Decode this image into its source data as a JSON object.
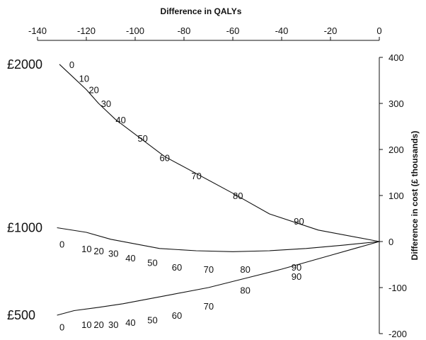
{
  "chart_data": {
    "type": "line",
    "title": "",
    "xlabel": "Difference in QALYs",
    "ylabel": "Difference in cost (£ thousands)",
    "xlim": [
      -140,
      0
    ],
    "ylim": [
      -200,
      400
    ],
    "x_ticks": [
      -140,
      -120,
      -100,
      -80,
      -60,
      -40,
      -20,
      0
    ],
    "y_ticks": [
      400,
      300,
      200,
      100,
      0,
      -100,
      -200
    ],
    "x_axis_position": "top",
    "y_axis_position": "right",
    "grid": false,
    "legend": "none",
    "line_color": "#111111",
    "series": [
      {
        "name": "£2000",
        "x": [
          -131,
          -125,
          -120,
          -115,
          -108,
          -98,
          -88,
          -74,
          -60,
          -45,
          -25,
          0
        ],
        "y": [
          385,
          355,
          330,
          300,
          265,
          225,
          185,
          145,
          105,
          60,
          25,
          0
        ],
        "labels": [
          "0",
          "10",
          "20",
          "30",
          "40",
          "50",
          "60",
          "70",
          "80",
          "90"
        ],
        "label_points": [
          {
            "text": "0",
            "x": -127,
            "y": 385
          },
          {
            "text": "10",
            "x": -123,
            "y": 355
          },
          {
            "text": "20",
            "x": -119,
            "y": 330
          },
          {
            "text": "30",
            "x": -114,
            "y": 300
          },
          {
            "text": "40",
            "x": -108,
            "y": 265
          },
          {
            "text": "50",
            "x": -99,
            "y": 225
          },
          {
            "text": "60",
            "x": -90,
            "y": 182
          },
          {
            "text": "70",
            "x": -77,
            "y": 143
          },
          {
            "text": "80",
            "x": -60,
            "y": 100
          },
          {
            "text": "90",
            "x": -35,
            "y": 45
          }
        ]
      },
      {
        "name": "£1000",
        "x": [
          -132,
          -120,
          -110,
          -100,
          -90,
          -75,
          -60,
          -45,
          -30,
          -15,
          0
        ],
        "y": [
          30,
          20,
          5,
          -5,
          -15,
          -20,
          -22,
          -20,
          -15,
          -8,
          0
        ],
        "labels": [
          "0",
          "10",
          "20",
          "30",
          "40",
          "50",
          "60",
          "70",
          "80",
          "90"
        ],
        "label_points": [
          {
            "text": "0",
            "x": -131,
            "y": -5
          },
          {
            "text": "10",
            "x": -122,
            "y": -15
          },
          {
            "text": "20",
            "x": -117,
            "y": -20
          },
          {
            "text": "30",
            "x": -111,
            "y": -25
          },
          {
            "text": "40",
            "x": -104,
            "y": -35
          },
          {
            "text": "50",
            "x": -95,
            "y": -45
          },
          {
            "text": "60",
            "x": -85,
            "y": -55
          },
          {
            "text": "70",
            "x": -72,
            "y": -60
          },
          {
            "text": "80",
            "x": -57,
            "y": -60
          },
          {
            "text": "90",
            "x": -36,
            "y": -55
          }
        ]
      },
      {
        "name": "£500",
        "x": [
          -132,
          -125,
          -115,
          -105,
          -95,
          -85,
          -70,
          -55,
          -40,
          -20,
          0
        ],
        "y": [
          -160,
          -150,
          -143,
          -135,
          -125,
          -115,
          -100,
          -80,
          -60,
          -30,
          0
        ],
        "labels": [
          "0",
          "10",
          "20",
          "30",
          "40",
          "50",
          "60",
          "70",
          "80",
          "90"
        ],
        "label_points": [
          {
            "text": "0",
            "x": -131,
            "y": -185
          },
          {
            "text": "10",
            "x": -122,
            "y": -180
          },
          {
            "text": "20",
            "x": -117,
            "y": -180
          },
          {
            "text": "30",
            "x": -111,
            "y": -180
          },
          {
            "text": "40",
            "x": -104,
            "y": -175
          },
          {
            "text": "50",
            "x": -95,
            "y": -170
          },
          {
            "text": "60",
            "x": -85,
            "y": -160
          },
          {
            "text": "70",
            "x": -72,
            "y": -140
          },
          {
            "text": "80",
            "x": -57,
            "y": -105
          },
          {
            "text": "90",
            "x": -36,
            "y": -75
          }
        ]
      }
    ]
  }
}
